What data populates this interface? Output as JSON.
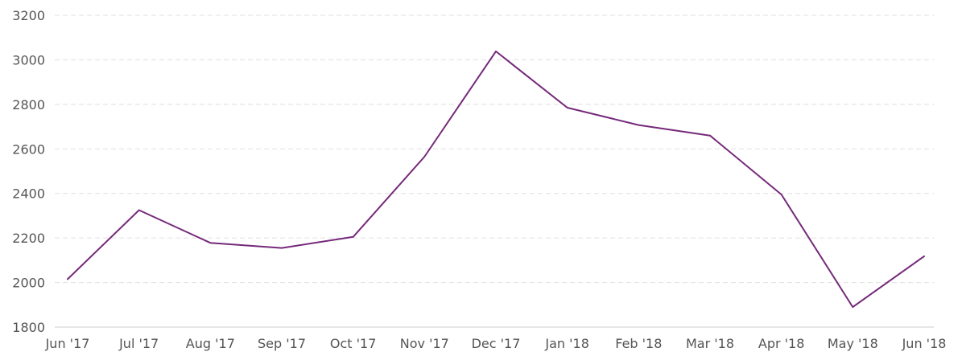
{
  "chart_data": {
    "type": "line",
    "categories": [
      "Jun '17",
      "Jul '17",
      "Aug '17",
      "Sep '17",
      "Oct '17",
      "Nov '17",
      "Dec '17",
      "Jan '18",
      "Feb '18",
      "Mar '18",
      "Apr '18",
      "May '18",
      "Jun '18"
    ],
    "series": [
      {
        "values": [
          2015,
          2325,
          2178,
          2155,
          2205,
          2565,
          3038,
          2785,
          2707,
          2660,
          2395,
          1890,
          2118
        ]
      }
    ],
    "ylim": [
      1800,
      3200
    ],
    "yticks": [
      1800,
      2000,
      2200,
      2400,
      2600,
      2800,
      3000,
      3200
    ],
    "grid": true,
    "legend": "none",
    "colors": {
      "line": "#75297a",
      "grid": "#e0e0e0",
      "text": "#555555"
    }
  }
}
